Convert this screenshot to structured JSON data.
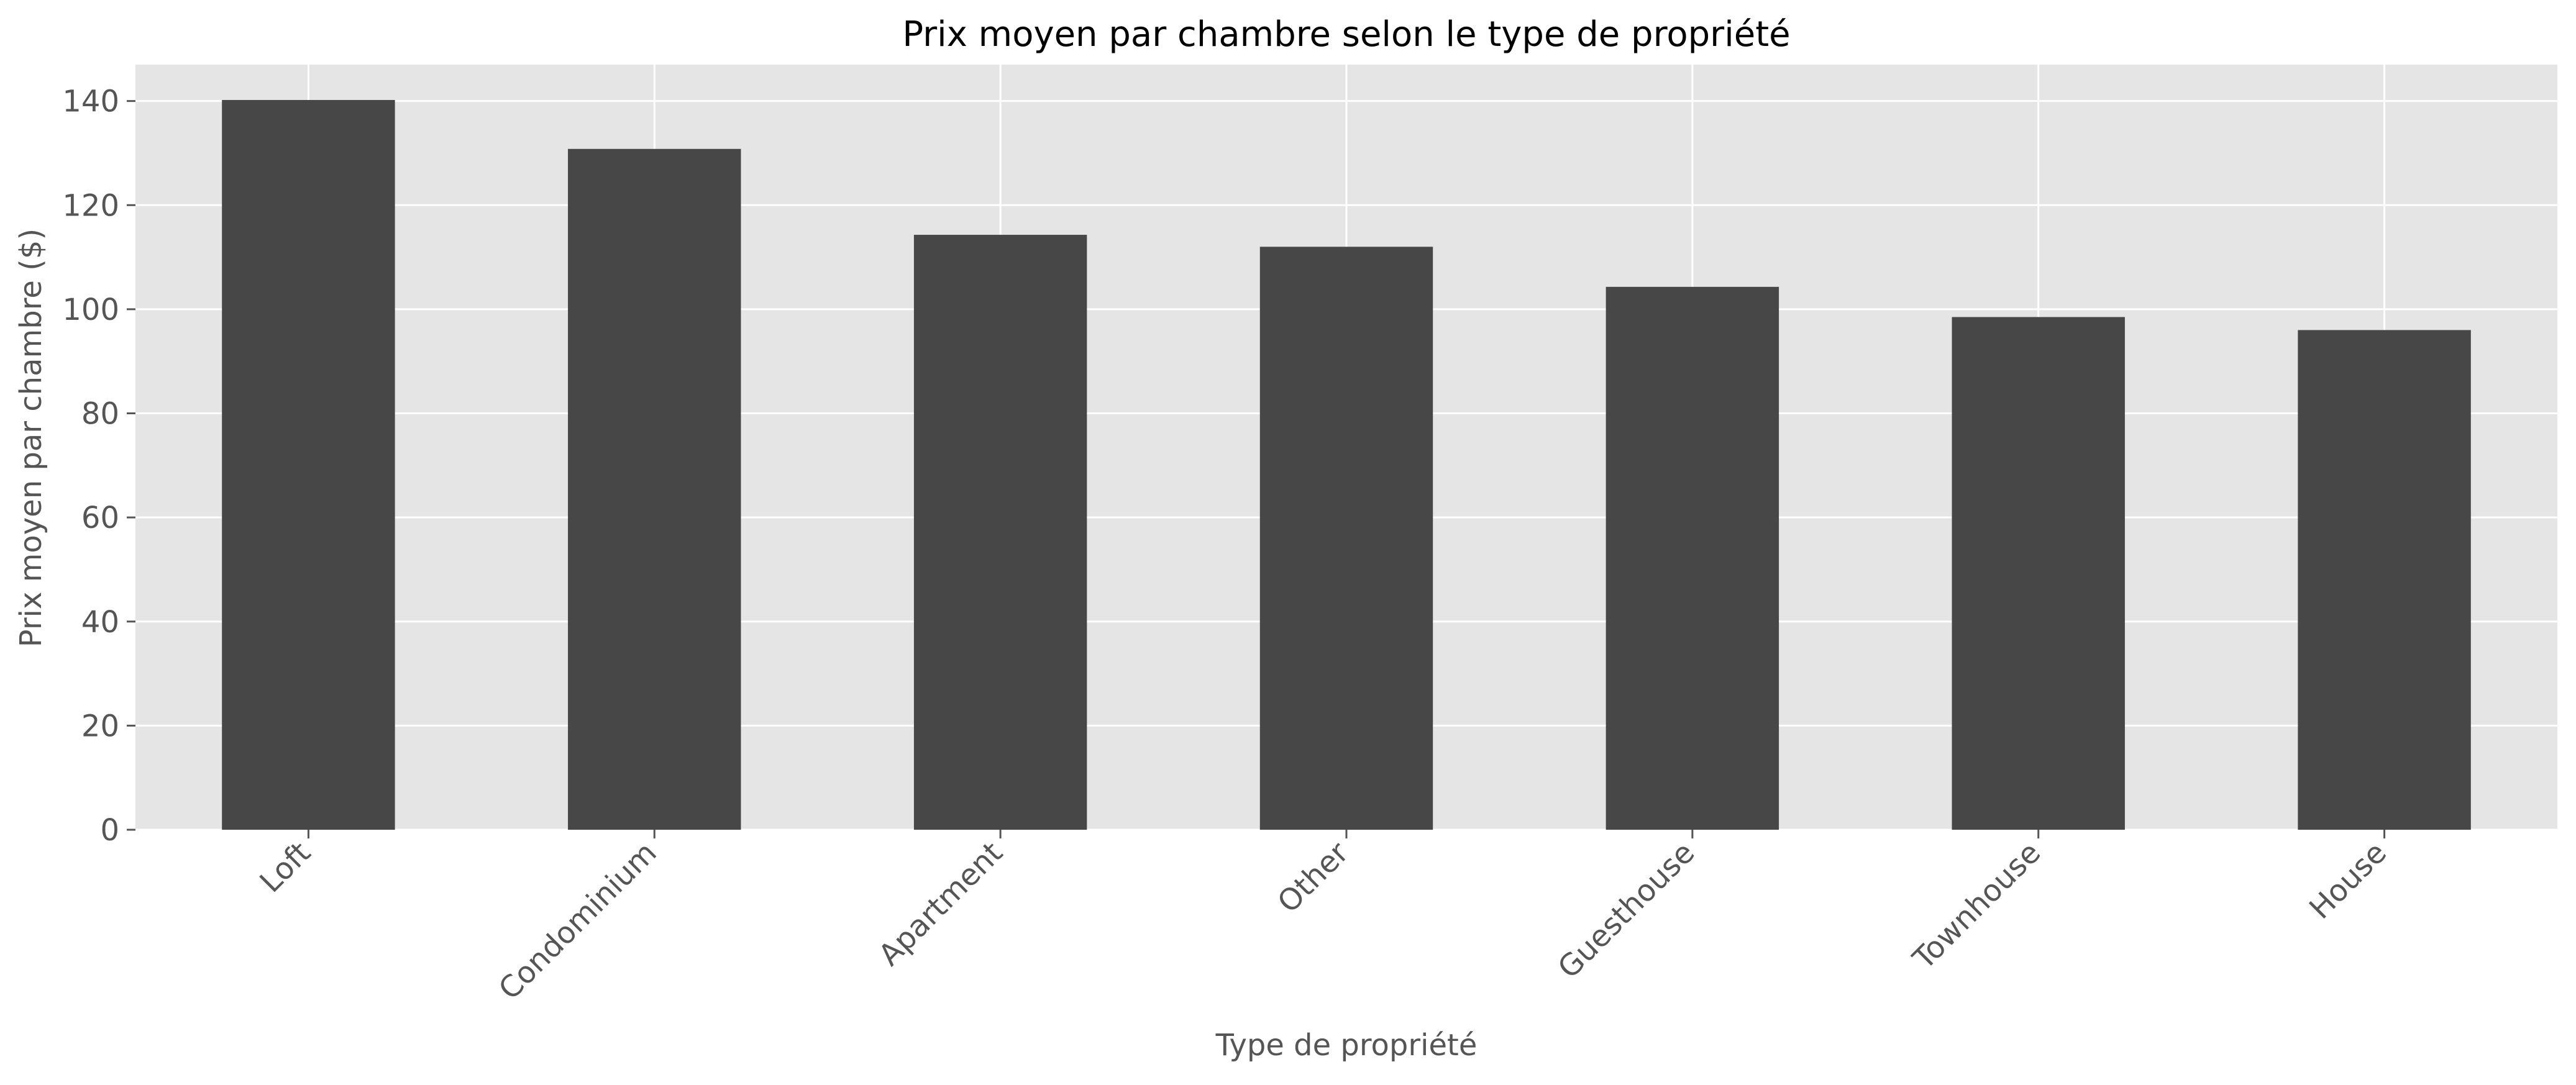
{
  "chart_data": {
    "type": "bar",
    "title": "Prix moyen par chambre selon le type de propriété",
    "xlabel": "Type de propriété",
    "ylabel": "Prix moyen par chambre ($)",
    "categories": [
      "Loft",
      "Condominium",
      "Apartment",
      "Other",
      "Guesthouse",
      "Townhouse",
      "House"
    ],
    "values": [
      140.2,
      130.8,
      114.3,
      112.0,
      104.3,
      98.5,
      96.0
    ],
    "ylim": [
      0,
      147
    ],
    "yticks": [
      0,
      20,
      40,
      60,
      80,
      100,
      120,
      140
    ],
    "grid": true,
    "legend": "none",
    "colors": {
      "bar": "#474747",
      "plot_background": "#e5e5e5",
      "grid": "#ffffff",
      "tick_text": "#555555",
      "title_text": "#000000"
    }
  }
}
